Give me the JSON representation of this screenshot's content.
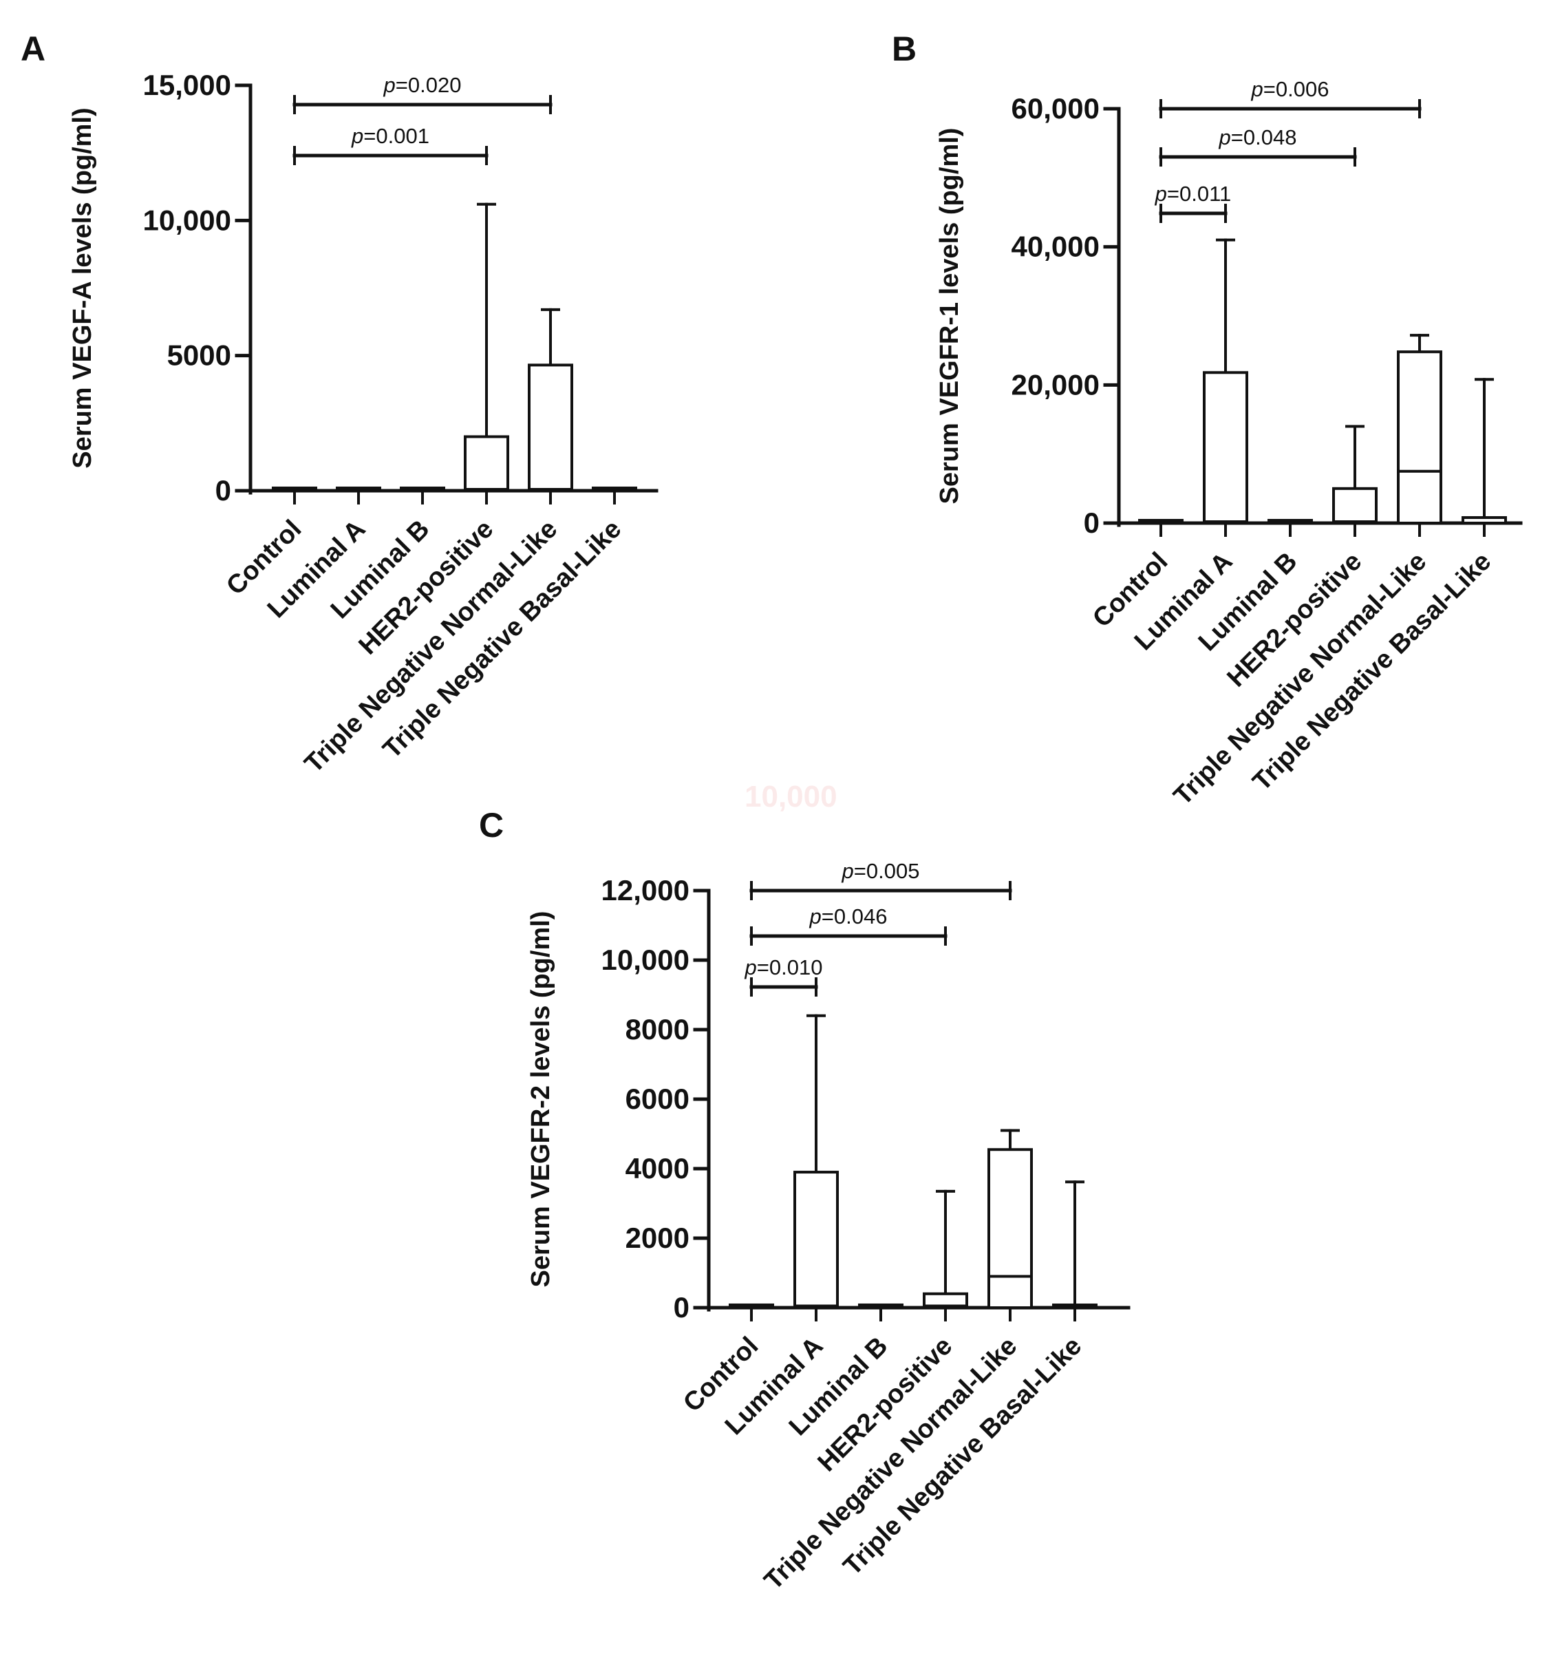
{
  "chart_data": [
    {
      "panel": "A",
      "type": "box",
      "ylabel": "Serum VEGF-A levels (pg/ml)",
      "ylim": [
        0,
        15000
      ],
      "yticks": [
        "0",
        "5000",
        "10,000",
        "15,000"
      ],
      "ytick_values": [
        0,
        5000,
        10000,
        15000
      ],
      "grid": false,
      "categories": [
        "Control",
        "Luminal A",
        "Luminal B",
        "HER2-positive",
        "Triple Negative Normal-Like",
        "Triple Negative Basal-Like"
      ],
      "boxes": [
        {
          "category": "Control",
          "q1": 0,
          "median": 100,
          "q3": 100,
          "max": 100
        },
        {
          "category": "Luminal A",
          "q1": 0,
          "median": 100,
          "q3": 100,
          "max": 100
        },
        {
          "category": "Luminal B",
          "q1": 0,
          "median": 100,
          "q3": 100,
          "max": 100
        },
        {
          "category": "HER2-positive",
          "q1": 0,
          "median": 50,
          "q3": 2000,
          "max": 10600
        },
        {
          "category": "Triple Negative Normal-Like",
          "q1": 0,
          "median": 50,
          "q3": 4650,
          "max": 6700
        },
        {
          "category": "Triple Negative Basal-Like",
          "q1": 0,
          "median": 100,
          "q3": 100,
          "max": 100
        }
      ],
      "comparisons": [
        {
          "from": "Control",
          "to": "HER2-positive",
          "label": "=0.001"
        },
        {
          "from": "Control",
          "to": "Triple Negative Normal-Like",
          "label": "=0.020"
        }
      ]
    },
    {
      "panel": "B",
      "type": "box",
      "ylabel": "Serum VEGFR-1 levels (pg/ml)",
      "ylim": [
        0,
        60000
      ],
      "yticks": [
        "0",
        "20,000",
        "40,000",
        "60,000"
      ],
      "ytick_values": [
        0,
        20000,
        40000,
        60000
      ],
      "grid": false,
      "categories": [
        "Control",
        "Luminal A",
        "Luminal B",
        "HER2-positive",
        "Triple Negative Normal-Like",
        "Triple Negative Basal-Like"
      ],
      "boxes": [
        {
          "category": "Control",
          "q1": 0,
          "median": 400,
          "q3": 400,
          "max": 400
        },
        {
          "category": "Luminal A",
          "q1": 0,
          "median": 200,
          "q3": 21800,
          "max": 41000
        },
        {
          "category": "Luminal B",
          "q1": 0,
          "median": 400,
          "q3": 400,
          "max": 400
        },
        {
          "category": "HER2-positive",
          "q1": 0,
          "median": 200,
          "q3": 5000,
          "max": 14000
        },
        {
          "category": "Triple Negative Normal-Like",
          "q1": 0,
          "median": 7500,
          "q3": 24800,
          "max": 27200
        },
        {
          "category": "Triple Negative Basal-Like",
          "q1": 0,
          "median": 800,
          "q3": 800,
          "max": 20800
        }
      ],
      "comparisons": [
        {
          "from": "Control",
          "to": "Luminal A",
          "label": "=0.011"
        },
        {
          "from": "Control",
          "to": "HER2-positive",
          "label": "=0.048"
        },
        {
          "from": "Control",
          "to": "Triple Negative Normal-Like",
          "label": "=0.006"
        }
      ]
    },
    {
      "panel": "C",
      "type": "box",
      "ylabel": "Serum VEGFR-2 levels (pg/ml)",
      "ylim": [
        0,
        12000
      ],
      "yticks": [
        "0",
        "2000",
        "4000",
        "6000",
        "8000",
        "10,000",
        "12,000"
      ],
      "ytick_values": [
        0,
        2000,
        4000,
        6000,
        8000,
        10000,
        12000
      ],
      "grid": false,
      "categories": [
        "Control",
        "Luminal A",
        "Luminal B",
        "HER2-positive",
        "Triple Negative Normal-Like",
        "Triple Negative Basal-Like"
      ],
      "boxes": [
        {
          "category": "Control",
          "q1": 0,
          "median": 80,
          "q3": 80,
          "max": 80
        },
        {
          "category": "Luminal A",
          "q1": 0,
          "median": 50,
          "q3": 3900,
          "max": 8400
        },
        {
          "category": "Luminal B",
          "q1": 0,
          "median": 80,
          "q3": 80,
          "max": 80
        },
        {
          "category": "HER2-positive",
          "q1": 0,
          "median": 50,
          "q3": 400,
          "max": 3350
        },
        {
          "category": "Triple Negative Normal-Like",
          "q1": 0,
          "median": 900,
          "q3": 4550,
          "max": 5100
        },
        {
          "category": "Triple Negative Basal-Like",
          "q1": 0,
          "median": 30,
          "q3": 30,
          "max": 3620
        }
      ],
      "comparisons": [
        {
          "from": "Control",
          "to": "Luminal A",
          "label": "=0.010"
        },
        {
          "from": "Control",
          "to": "HER2-positive",
          "label": "=0.046"
        },
        {
          "from": "Control",
          "to": "Triple Negative Normal-Like",
          "label": "=0.005"
        }
      ]
    }
  ],
  "p_prefix": "p",
  "ghost_text": "10,000"
}
